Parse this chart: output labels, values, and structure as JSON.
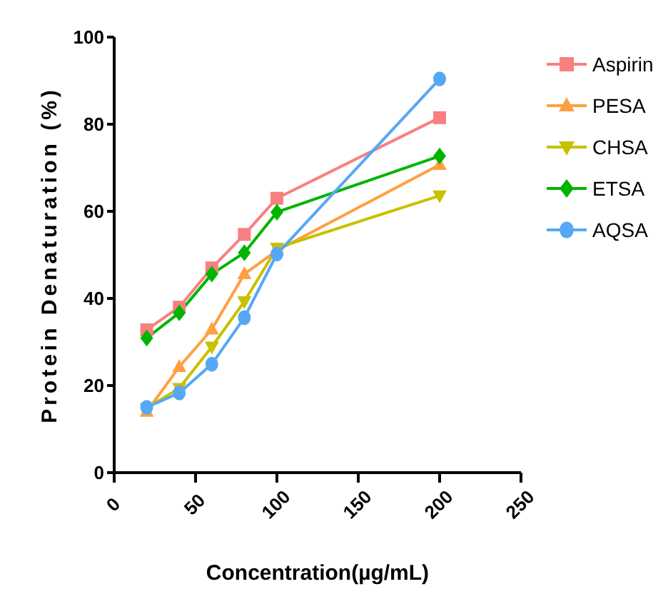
{
  "chart_data": {
    "type": "line",
    "xlabel": "Concentration(µg/mL)",
    "ylabel": "Protein Denaturation (%)",
    "x": [
      20,
      40,
      60,
      80,
      100,
      200
    ],
    "xlim": [
      0,
      250
    ],
    "xticks": [
      0,
      50,
      100,
      150,
      200,
      250
    ],
    "ylim": [
      0,
      100
    ],
    "yticks": [
      0,
      20,
      40,
      60,
      80,
      100
    ],
    "grid": false,
    "legend": "right",
    "line_style": "solid",
    "series": [
      {
        "name": "Aspirin",
        "color": "#f88080",
        "marker": "square",
        "values": [
          32.8,
          38,
          47,
          54.7,
          63,
          81.5
        ]
      },
      {
        "name": "PESA",
        "color": "#ffa040",
        "marker": "triangle",
        "values": [
          14,
          24.3,
          32.9,
          45.6,
          51,
          70.7
        ]
      },
      {
        "name": "CHSA",
        "color": "#c8c000",
        "marker": "triangle-down",
        "values": [
          14.8,
          19.4,
          28.9,
          39.3,
          51.6,
          63.6
        ]
      },
      {
        "name": "ETSA",
        "color": "#00b400",
        "marker": "diamond",
        "values": [
          30.9,
          36.7,
          45.6,
          50.5,
          59.8,
          72.7
        ]
      },
      {
        "name": "AQSA",
        "color": "#55a8f5",
        "marker": "circle",
        "values": [
          15,
          18.3,
          24.9,
          35.6,
          50.2,
          90.4
        ]
      }
    ]
  }
}
